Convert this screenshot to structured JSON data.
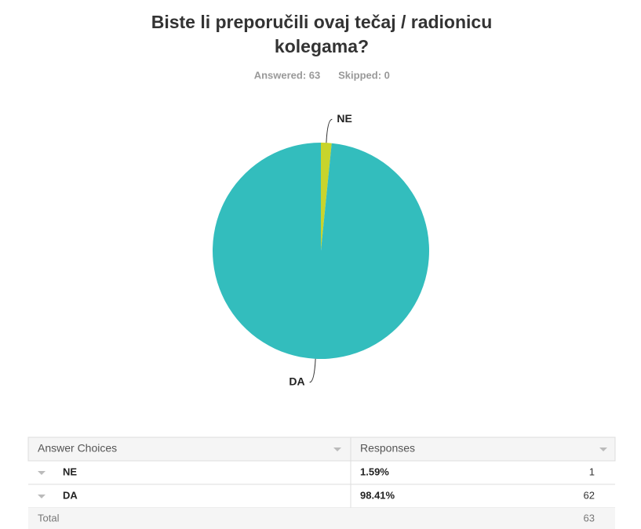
{
  "chart_data": {
    "type": "pie",
    "title": [
      "Biste li preporučili ovaj tečaj / radionicu",
      "kolegama?"
    ],
    "stats": [
      "Answered: 63",
      "Skipped: 0"
    ],
    "categories": [
      "NE",
      "DA"
    ],
    "values": [
      1.59,
      98.41
    ],
    "colors": [
      "#c8d42c",
      "#33bdbd"
    ]
  },
  "table": {
    "header": [
      "Answer Choices",
      "Responses"
    ],
    "rows": [
      [
        "NE",
        "1.59%",
        "1"
      ],
      [
        "DA",
        "98.41%",
        "62"
      ]
    ],
    "total": [
      "Total",
      "63"
    ]
  }
}
